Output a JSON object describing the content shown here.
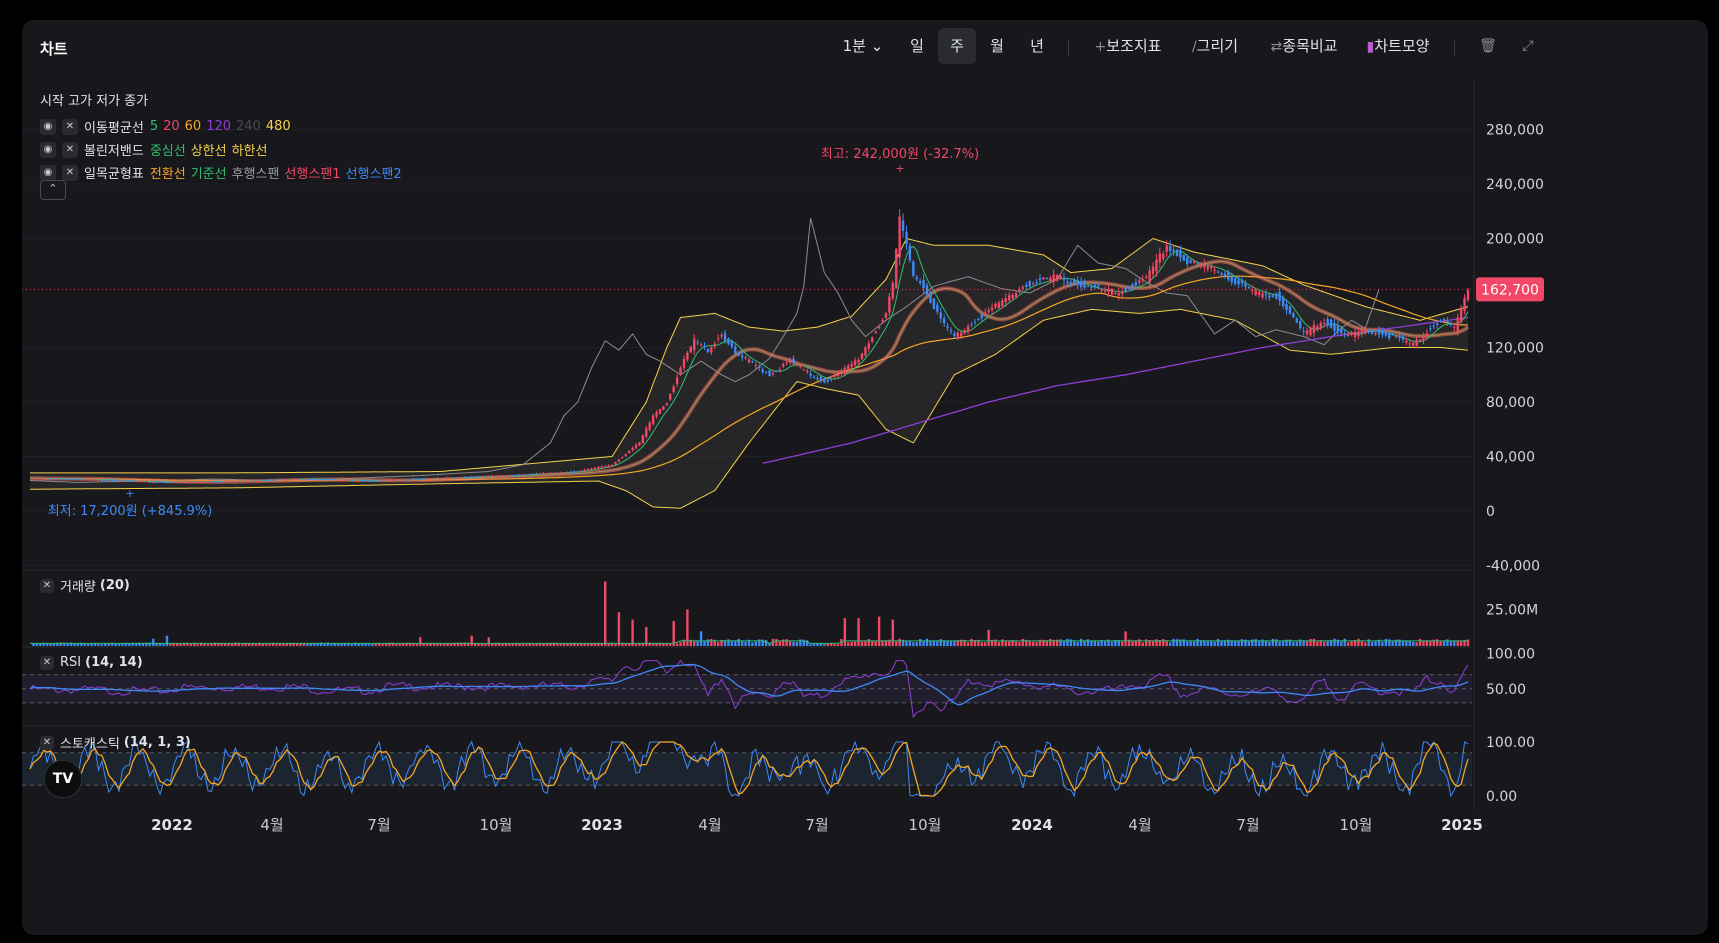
{
  "toolbar": {
    "title": "차트",
    "interval_label": "1분",
    "periods": [
      "일",
      "주",
      "월",
      "년"
    ],
    "active_period": "주",
    "indicators_label": "보조지표",
    "draw_label": "그리기",
    "compare_label": "종목비교",
    "chart_style_label": "차트모양",
    "icons": [
      "chevron-down-icon",
      "plus-icon",
      "pencil-icon",
      "swap-icon",
      "bar-chart-icon",
      "trash-icon",
      "expand-icon"
    ]
  },
  "legend": {
    "ohlc_label": "시작 고가 저가 종가",
    "ma": {
      "name": "이동평균선",
      "periods": [
        {
          "label": "5",
          "color": "#2fbf71"
        },
        {
          "label": "20",
          "color": "#f04866"
        },
        {
          "label": "60",
          "color": "#f5a623"
        },
        {
          "label": "120",
          "color": "#8e3fd8"
        },
        {
          "label": "240",
          "color": "#4a4b52"
        },
        {
          "label": "480",
          "color": "#f5d24a"
        }
      ]
    },
    "bb": {
      "name": "볼린저밴드",
      "parts": [
        {
          "label": "중심선",
          "color": "#2fbf71"
        },
        {
          "label": "상한선",
          "color": "#f5d24a"
        },
        {
          "label": "하한선",
          "color": "#f5d24a"
        }
      ]
    },
    "ichimoku": {
      "name": "일목균형표",
      "parts": [
        {
          "label": "전환선",
          "color": "#f5a623"
        },
        {
          "label": "기준선",
          "color": "#2fbf71"
        },
        {
          "label": "후행스팬",
          "color": "#9a9ca5"
        },
        {
          "label": "선행스팬1",
          "color": "#f04866"
        },
        {
          "label": "선행스팬2",
          "color": "#3d8af7"
        }
      ]
    }
  },
  "panes": {
    "volume_label": "거래량",
    "volume_params": "(20)",
    "rsi_label": "RSI",
    "rsi_params": "(14, 14)",
    "stoch_label": "스토캐스틱",
    "stoch_params": "(14, 1, 3)"
  },
  "colors": {
    "up": "#f04866",
    "down": "#3d8af7",
    "background": "#18181c",
    "grid": "#26272c"
  },
  "chart_data": [
    {
      "type": "candlestick",
      "title": "",
      "x_ticks": [
        "2022",
        "4월",
        "7월",
        "10월",
        "2023",
        "4월",
        "7월",
        "10월",
        "2024",
        "4월",
        "7월",
        "10월",
        "2025"
      ],
      "x_ticks_bold": [
        "2022",
        "2023",
        "2024",
        "2025"
      ],
      "y_ticks": [
        280000,
        240000,
        200000,
        120000,
        80000,
        40000,
        0,
        -40000
      ],
      "y_tick_labels": [
        "280,000",
        "240,000",
        "200,000",
        "120,000",
        "80,000",
        "40,000",
        "0",
        "-40,000"
      ],
      "ylim": [
        -40000,
        310000
      ],
      "last_price": 162700,
      "last_price_label": "162,700",
      "high_annotation": "최고: 242,000원 (-32.7%)",
      "low_annotation": "최저: 17,200원 (+845.9%)",
      "close_trend": [
        [
          0,
          24000
        ],
        [
          20,
          23000
        ],
        [
          40,
          21000
        ],
        [
          60,
          22000
        ],
        [
          80,
          23500
        ],
        [
          100,
          22000
        ],
        [
          120,
          24000
        ],
        [
          140,
          26000
        ],
        [
          160,
          29000
        ],
        [
          170,
          34000
        ],
        [
          178,
          50000
        ],
        [
          182,
          70000
        ],
        [
          186,
          80000
        ],
        [
          190,
          105000
        ],
        [
          194,
          125000
        ],
        [
          198,
          118000
        ],
        [
          202,
          130000
        ],
        [
          206,
          115000
        ],
        [
          210,
          110000
        ],
        [
          216,
          100000
        ],
        [
          222,
          110000
        ],
        [
          228,
          100000
        ],
        [
          232,
          95000
        ],
        [
          236,
          100000
        ],
        [
          242,
          112000
        ],
        [
          246,
          128000
        ],
        [
          250,
          145000
        ],
        [
          252,
          165000
        ],
        [
          254,
          215000
        ],
        [
          258,
          175000
        ],
        [
          262,
          160000
        ],
        [
          266,
          140000
        ],
        [
          270,
          128000
        ],
        [
          276,
          140000
        ],
        [
          282,
          150000
        ],
        [
          290,
          165000
        ],
        [
          300,
          172000
        ],
        [
          310,
          163000
        ],
        [
          318,
          160000
        ],
        [
          326,
          170000
        ],
        [
          332,
          195000
        ],
        [
          338,
          182000
        ],
        [
          346,
          178000
        ],
        [
          352,
          168000
        ],
        [
          358,
          160000
        ],
        [
          364,
          158000
        ],
        [
          372,
          130000
        ],
        [
          378,
          140000
        ],
        [
          384,
          128000
        ],
        [
          390,
          133000
        ],
        [
          398,
          128000
        ],
        [
          404,
          122000
        ],
        [
          408,
          132000
        ],
        [
          412,
          140000
        ],
        [
          416,
          134000
        ],
        [
          420,
          162700
        ]
      ],
      "bollinger_upper": [
        [
          0,
          28000
        ],
        [
          60,
          28000
        ],
        [
          120,
          29000
        ],
        [
          170,
          40000
        ],
        [
          180,
          80000
        ],
        [
          186,
          120000
        ],
        [
          190,
          142000
        ],
        [
          200,
          145000
        ],
        [
          210,
          135000
        ],
        [
          220,
          132000
        ],
        [
          230,
          135000
        ],
        [
          240,
          143000
        ],
        [
          250,
          170000
        ],
        [
          256,
          200000
        ],
        [
          264,
          195000
        ],
        [
          280,
          195000
        ],
        [
          296,
          188000
        ],
        [
          304,
          175000
        ],
        [
          316,
          178000
        ],
        [
          328,
          200000
        ],
        [
          340,
          190000
        ],
        [
          360,
          180000
        ],
        [
          372,
          166000
        ],
        [
          390,
          150000
        ],
        [
          406,
          140000
        ],
        [
          420,
          150000
        ]
      ],
      "bollinger_lower": [
        [
          0,
          16000
        ],
        [
          60,
          17000
        ],
        [
          120,
          20000
        ],
        [
          166,
          22000
        ],
        [
          174,
          15000
        ],
        [
          182,
          3000
        ],
        [
          190,
          2000
        ],
        [
          200,
          15000
        ],
        [
          210,
          50000
        ],
        [
          224,
          95000
        ],
        [
          232,
          90000
        ],
        [
          242,
          85000
        ],
        [
          250,
          60000
        ],
        [
          258,
          50000
        ],
        [
          270,
          100000
        ],
        [
          282,
          115000
        ],
        [
          296,
          140000
        ],
        [
          310,
          148000
        ],
        [
          324,
          145000
        ],
        [
          336,
          148000
        ],
        [
          352,
          140000
        ],
        [
          368,
          118000
        ],
        [
          380,
          115000
        ],
        [
          398,
          120000
        ],
        [
          412,
          120000
        ],
        [
          420,
          118000
        ]
      ],
      "ma120_trend": [
        [
          214,
          35000
        ],
        [
          240,
          50000
        ],
        [
          260,
          65000
        ],
        [
          280,
          80000
        ],
        [
          300,
          92000
        ],
        [
          320,
          100000
        ],
        [
          340,
          110000
        ],
        [
          360,
          120000
        ],
        [
          380,
          128000
        ],
        [
          400,
          135000
        ],
        [
          420,
          142000
        ]
      ]
    },
    {
      "type": "bar",
      "title": "거래량",
      "y_ticks": [
        25000000
      ],
      "y_tick_labels": [
        "25.00M"
      ],
      "ylim": [
        0,
        45000000
      ],
      "spikes": [
        [
          36,
          5000000
        ],
        [
          40,
          7000000
        ],
        [
          114,
          6000000
        ],
        [
          129,
          7000000
        ],
        [
          134,
          6000000
        ],
        [
          168,
          44000000
        ],
        [
          172,
          23000000
        ],
        [
          176,
          18000000
        ],
        [
          180,
          13000000
        ],
        [
          188,
          17000000
        ],
        [
          192,
          25000000
        ],
        [
          196,
          10000000
        ],
        [
          238,
          19000000
        ],
        [
          242,
          19000000
        ],
        [
          248,
          20000000
        ],
        [
          252,
          18000000
        ],
        [
          280,
          11000000
        ],
        [
          320,
          10000000
        ]
      ]
    },
    {
      "type": "line",
      "title": "RSI",
      "y_ticks": [
        100,
        50
      ],
      "y_tick_labels": [
        "100.00",
        "50.00"
      ],
      "ylim": [
        0,
        105
      ]
    },
    {
      "type": "line",
      "title": "스토캐스틱",
      "y_ticks": [
        100,
        0
      ],
      "y_tick_labels": [
        "100.00",
        "0.00"
      ],
      "ylim": [
        -10,
        110
      ]
    }
  ]
}
